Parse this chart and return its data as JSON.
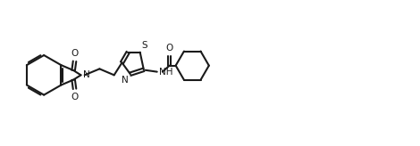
{
  "background_color": "#ffffff",
  "line_color": "#1a1a1a",
  "line_width": 1.5,
  "font_size": 7.5,
  "xlim": [
    0,
    100
  ],
  "ylim": [
    0,
    35
  ]
}
